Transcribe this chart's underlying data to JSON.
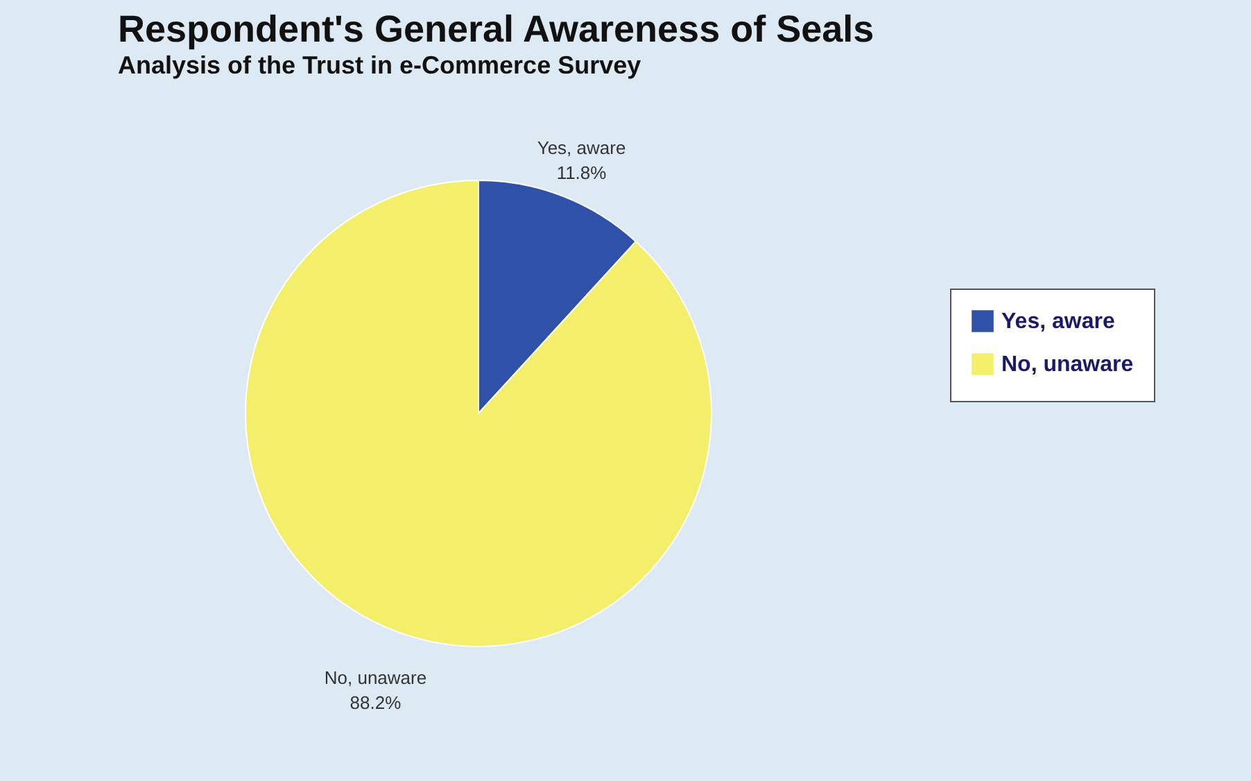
{
  "chart_data": {
    "type": "pie",
    "title": "Respondent's General Awareness of Seals",
    "subtitle": "Analysis of the Trust in e-Commerce Survey",
    "categories": [
      "Yes, aware",
      "No, unaware"
    ],
    "values": [
      11.8,
      88.2
    ],
    "value_labels": [
      "11.8%",
      "88.2%"
    ],
    "colors": [
      "#2f52a8",
      "#f4ef6a"
    ],
    "legend": "right"
  }
}
